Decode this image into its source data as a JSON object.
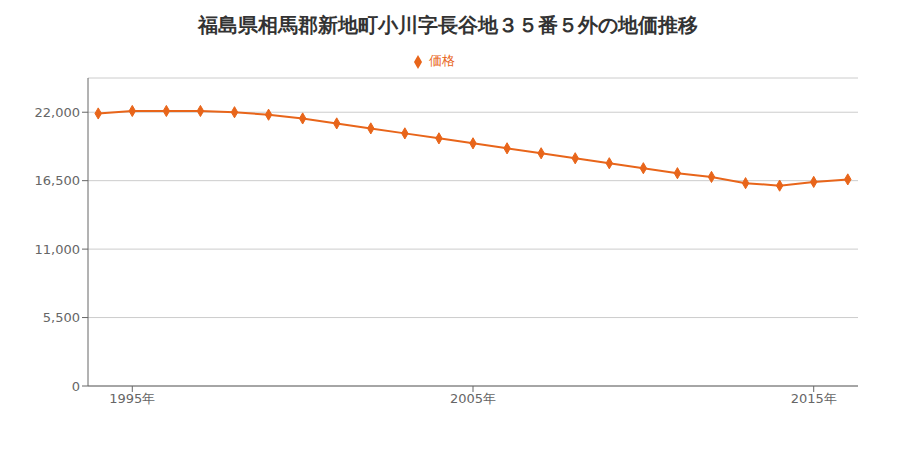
{
  "chart_data": {
    "type": "line",
    "title": "福島県相馬郡新地町小川字長谷地３５番５外の地価推移",
    "x": [
      1994,
      1995,
      1996,
      1997,
      1998,
      1999,
      2000,
      2001,
      2002,
      2003,
      2004,
      2005,
      2006,
      2007,
      2008,
      2009,
      2010,
      2011,
      2012,
      2013,
      2014,
      2015,
      2016
    ],
    "series": [
      {
        "name": "価格",
        "color": "#E8651A",
        "marker": "diamond",
        "values": [
          21900,
          22100,
          22100,
          22100,
          22000,
          21800,
          21500,
          21100,
          20700,
          20300,
          19900,
          19500,
          19100,
          18700,
          18300,
          17900,
          17500,
          17100,
          16800,
          16300,
          16100,
          16400,
          16600
        ]
      }
    ],
    "xlim": [
      1993.7,
      2016.3
    ],
    "xticks": [
      {
        "value": 1995,
        "label": "1995年"
      },
      {
        "value": 2005,
        "label": "2005年"
      },
      {
        "value": 2015,
        "label": "2015年"
      }
    ],
    "ylim": [
      0,
      24750
    ],
    "yticks": [
      0,
      {
        "value": 5500,
        "label": "5,500"
      },
      {
        "value": 11000,
        "label": "11,000"
      },
      {
        "value": 16500,
        "label": "16,500"
      },
      {
        "value": 22000,
        "label": "22,000"
      }
    ],
    "grid": "y",
    "legend": "top"
  }
}
